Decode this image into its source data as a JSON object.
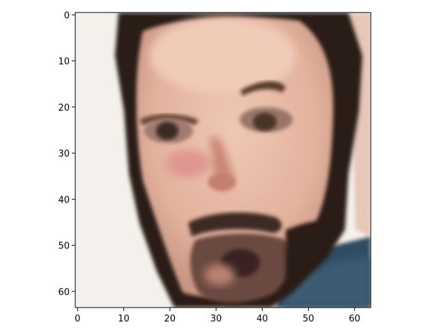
{
  "figure": {
    "subject": "low-resolution generated portrait of a man with dark hair and beard",
    "image_resolution": [
      64,
      64
    ]
  },
  "axes": {
    "x": {
      "limits": [
        -0.5,
        63.5
      ],
      "ticks": [
        0,
        10,
        20,
        30,
        40,
        50,
        60
      ],
      "tick_labels": [
        "0",
        "10",
        "20",
        "30",
        "40",
        "50",
        "60"
      ]
    },
    "y": {
      "limits": [
        63.5,
        -0.5
      ],
      "ticks": [
        0,
        10,
        20,
        30,
        40,
        50,
        60
      ],
      "tick_labels": [
        "0",
        "10",
        "20",
        "30",
        "40",
        "50",
        "60"
      ]
    }
  },
  "colors": {
    "background": "#f4f1ec",
    "skin": "#e5b9a5",
    "skin_shadow": "#cf9a86",
    "hair": "#241a14",
    "cheek": "#df9691",
    "shirt": "#2f4d63",
    "bg_right": "#e7c7b7"
  }
}
